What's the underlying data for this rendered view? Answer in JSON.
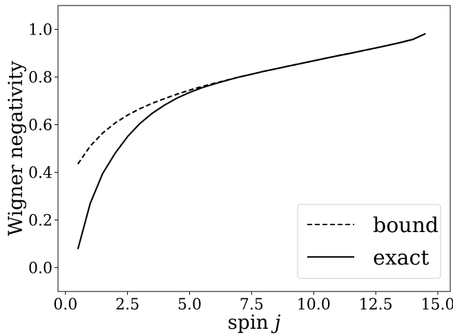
{
  "chart_data": {
    "type": "line",
    "xlabel_main": "spin ",
    "xlabel_var": "j",
    "ylabel": "Wigner negativity",
    "xlim": [
      -0.3,
      15.5
    ],
    "ylim": [
      -0.1,
      1.1
    ],
    "xticks": [
      0.0,
      2.5,
      5.0,
      7.5,
      10.0,
      12.5,
      15.0
    ],
    "xtick_labels": [
      "0.0",
      "2.5",
      "5.0",
      "7.5",
      "10.0",
      "12.5",
      "15.0"
    ],
    "yticks": [
      0.0,
      0.2,
      0.4,
      0.6,
      0.8,
      1.0
    ],
    "ytick_labels": [
      "0.0",
      "0.2",
      "0.4",
      "0.6",
      "0.8",
      "1.0"
    ],
    "grid": false,
    "legend_position": "lower-right",
    "series": [
      {
        "name": "bound",
        "style": "dashed",
        "color": "#000000",
        "x": [
          0.5,
          1.0,
          1.5,
          2.0,
          2.5,
          3.0,
          3.5,
          4.0,
          4.5,
          5.0,
          5.5,
          6.0,
          6.5,
          7.0,
          7.5,
          8.0,
          8.5,
          9.0,
          9.5,
          10.0,
          10.5,
          11.0,
          11.5,
          12.0,
          12.5,
          13.0,
          13.5,
          14.0,
          14.5
        ],
        "y": [
          0.435,
          0.51,
          0.565,
          0.607,
          0.64,
          0.667,
          0.69,
          0.71,
          0.728,
          0.745,
          0.76,
          0.774,
          0.787,
          0.8,
          0.812,
          0.824,
          0.835,
          0.846,
          0.857,
          0.868,
          0.879,
          0.89,
          0.9,
          0.911,
          0.922,
          0.933,
          0.945,
          0.958,
          0.982
        ]
      },
      {
        "name": "exact",
        "style": "solid",
        "color": "#000000",
        "x": [
          0.5,
          1.0,
          1.5,
          2.0,
          2.5,
          3.0,
          3.5,
          4.0,
          4.5,
          5.0,
          5.5,
          6.0,
          6.5,
          7.0,
          7.5,
          8.0,
          8.5,
          9.0,
          9.5,
          10.0,
          10.5,
          11.0,
          11.5,
          12.0,
          12.5,
          13.0,
          13.5,
          14.0,
          14.5
        ],
        "y": [
          0.078,
          0.27,
          0.395,
          0.48,
          0.55,
          0.605,
          0.648,
          0.683,
          0.712,
          0.735,
          0.755,
          0.771,
          0.786,
          0.8,
          0.812,
          0.824,
          0.835,
          0.846,
          0.857,
          0.868,
          0.879,
          0.89,
          0.9,
          0.911,
          0.922,
          0.933,
          0.945,
          0.958,
          0.982
        ]
      }
    ]
  }
}
